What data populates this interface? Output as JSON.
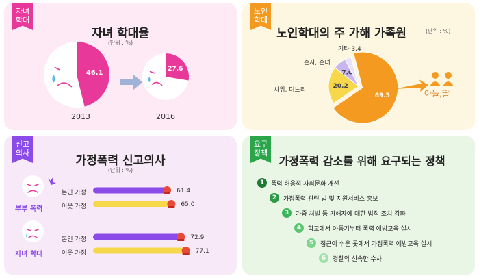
{
  "colors": {
    "pink": "#e8399b",
    "purple": "#8a4be8",
    "green": "#2aa54a",
    "orange": "#f49a20",
    "yellow": "#f6d84a",
    "lilac": "#c9b6f0"
  },
  "panel1": {
    "tag": [
      "자녀",
      "학대"
    ],
    "title": "자녀 학대율",
    "unit": "(단위 : %)",
    "chart_data": {
      "type": "pie",
      "title": "자녀 학대율",
      "unit": "%",
      "categories": [
        "2013",
        "2016"
      ],
      "values": [
        46.1,
        27.6
      ]
    }
  },
  "panel2": {
    "tag": [
      "노인",
      "학대"
    ],
    "title": "노인학대의 주 가해 가족원",
    "unit": "(단위 : %)",
    "icon_label": "아들,딸",
    "chart_data": {
      "type": "pie",
      "title": "노인학대의 주 가해 가족원",
      "unit": "%",
      "slices": [
        {
          "label": "아들,딸",
          "value": 69.5
        },
        {
          "label": "사위, 며느리",
          "value": 20.2
        },
        {
          "label": "손자, 손녀",
          "value": 7.0
        },
        {
          "label": "기타",
          "value": 3.4
        }
      ]
    }
  },
  "panel3": {
    "tag": [
      "신고",
      "의사"
    ],
    "title": "가정폭력 신고의사",
    "unit": "(단위 : %)",
    "chart_data": {
      "type": "bar",
      "title": "가정폭력 신고의사",
      "unit": "%",
      "xlim": [
        0,
        100
      ],
      "groups": [
        {
          "name": "부부 폭력",
          "bars": [
            {
              "label": "본인 가정",
              "value": 61.4
            },
            {
              "label": "이웃 가정",
              "value": 65.0
            }
          ]
        },
        {
          "name": "자녀 학대",
          "bars": [
            {
              "label": "본인 가정",
              "value": 72.9
            },
            {
              "label": "이웃 가정",
              "value": 77.1
            }
          ]
        }
      ]
    }
  },
  "panel4": {
    "tag": [
      "요구",
      "정책"
    ],
    "title": "가정폭력 감소를 위해 요구되는 정책",
    "items": [
      {
        "num": "1",
        "text": "폭력 허용적 사회문화 개선"
      },
      {
        "num": "2",
        "text": "가정폭력 관련 법 및 지원서비스 홍보"
      },
      {
        "num": "3",
        "text": "가중 처벌 등 가해자에 대한 법적 조치 강화"
      },
      {
        "num": "4",
        "text": "학교에서 아동기부터 폭력 예방교육 실시"
      },
      {
        "num": "5",
        "text": "접근이 쉬운 곳에서 가정폭력 예방교육 실시"
      },
      {
        "num": "6",
        "text": "경찰의 신속한 수사"
      }
    ]
  }
}
